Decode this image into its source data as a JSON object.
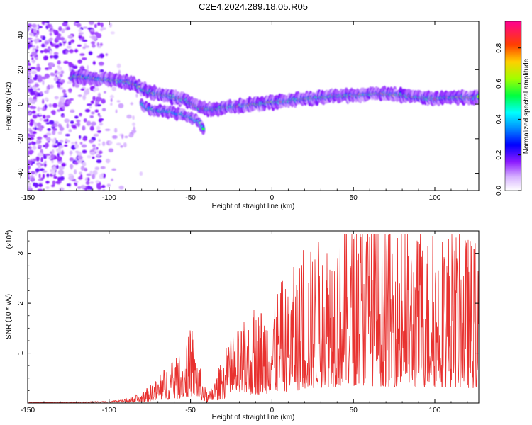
{
  "title": "C2E4.2024.289.18.05.R05",
  "chart_data": [
    {
      "type": "heatmap",
      "title": "C2E4.2024.289.18.05.R05",
      "xlabel": "Height of straight line (km)",
      "ylabel": "Frequency (Hz)",
      "xlim": [
        -150,
        127
      ],
      "ylim": [
        -50,
        48
      ],
      "x_ticks": [
        -150,
        -100,
        -50,
        0,
        50,
        100
      ],
      "y_ticks": [
        -40,
        -20,
        0,
        20,
        40
      ],
      "colorbar": {
        "label": "Normalized spectral amplitude",
        "range": [
          0,
          0.95
        ],
        "ticks": [
          0.0,
          0.2,
          0.4,
          0.6,
          0.8
        ],
        "colors": [
          "#ffffff",
          "#c080ff",
          "#7a00ff",
          "#0000ff",
          "#00c8ff",
          "#00ff60",
          "#c0ff00",
          "#ffc000",
          "#ff4000",
          "#ff0080"
        ]
      },
      "ridge": {
        "x": [
          -120,
          -110,
          -100,
          -90,
          -85,
          -80,
          -75,
          -70,
          -65,
          -60,
          -55,
          -50,
          -45,
          -40,
          -35,
          -30,
          -20,
          -10,
          0,
          10,
          20,
          30,
          40,
          50,
          60,
          70,
          80,
          90,
          100,
          110,
          120,
          127
        ],
        "y": [
          16,
          15,
          14,
          13,
          12,
          9,
          7,
          6,
          5,
          4,
          3,
          1,
          -2,
          -3,
          -3,
          -2,
          -1,
          0,
          1,
          2,
          3,
          4,
          5,
          5,
          6,
          6,
          5,
          4,
          3,
          4,
          4,
          4
        ]
      },
      "branch": {
        "x": [
          -80,
          -75,
          -70,
          -65,
          -60,
          -55,
          -50,
          -45,
          -42
        ],
        "y": [
          0,
          -3,
          -4,
          -4,
          -5,
          -6,
          -8,
          -10,
          -14
        ]
      }
    },
    {
      "type": "line",
      "xlabel": "Height of straight line (km)",
      "ylabel": "SNR (10 * v/v)",
      "y_multiplier": "(x10",
      "y_multiplier_exp": "4",
      "y_multiplier_close": ")",
      "xlim": [
        -150,
        127
      ],
      "ylim": [
        0,
        3.45
      ],
      "x_ticks": [
        -150,
        -100,
        -50,
        0,
        50,
        100
      ],
      "y_ticks": [
        1,
        2,
        3
      ],
      "line_color": "#e8312f",
      "envelope": {
        "x": [
          -150,
          -120,
          -100,
          -90,
          -80,
          -70,
          -65,
          -60,
          -55,
          -50,
          -48,
          -45,
          -42,
          -40,
          -38,
          -35,
          -30,
          -25,
          -20,
          -10,
          0,
          10,
          20,
          30,
          40,
          50,
          60,
          70,
          80,
          90,
          100,
          110,
          120,
          127
        ],
        "y": [
          0.01,
          0.02,
          0.03,
          0.06,
          0.12,
          0.3,
          0.45,
          0.5,
          0.65,
          0.85,
          0.8,
          0.5,
          0.25,
          0.12,
          0.15,
          0.3,
          0.55,
          0.75,
          0.9,
          1.1,
          1.3,
          1.55,
          1.75,
          2.0,
          2.15,
          2.3,
          2.25,
          2.2,
          2.1,
          2.0,
          2.05,
          2.1,
          2.0,
          1.95
        ]
      }
    }
  ]
}
